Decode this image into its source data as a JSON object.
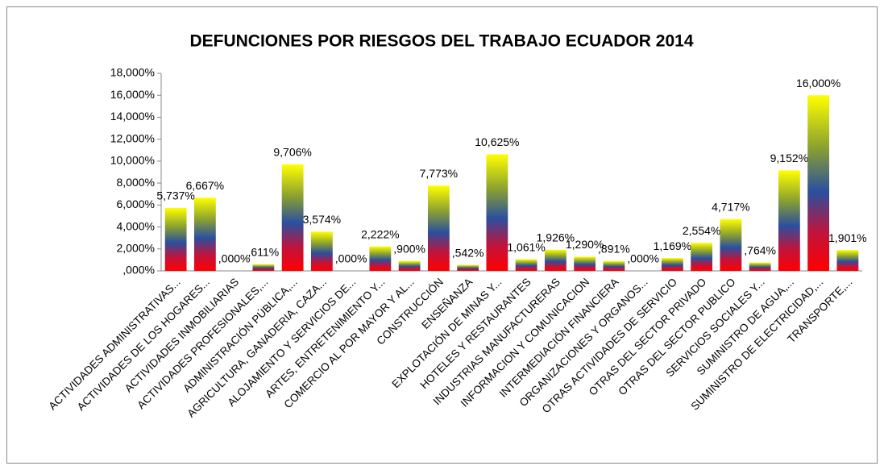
{
  "chart_data": {
    "type": "bar",
    "title": "DEFUNCIONES POR RIESGOS DEL TRABAJO ECUADOR 2014",
    "categories": [
      "ACTIVIDADES ADMINISTRATIVAS...",
      "ACTIVIDADES DE LOS HOGARES...",
      "ACTIVIDADES INMOBILIARIAS",
      "ACTIVIDADES PROFESIONALES,...",
      "ADMINISTRACIÓN PÚBLICA,...",
      "AGRICULTURA, GANADERIA, CAZA...",
      "ALOJAMIENTO Y SERVICIOS DE...",
      "ARTES, ENTRETENIMIENTO Y...",
      "COMERCIO AL POR MAYOR Y AL...",
      "CONSTRUCCIÓN",
      "ENSEÑANZA",
      "EXPLOTACIÓN DE MINAS Y...",
      "HOTELES Y RESTAURANTES",
      "INDUSTRIAS MANUFACTURERAS",
      "INFORMACION Y COMUNICACION",
      "INTERMEDIACIÓN FINANCIERA",
      "ORGANIZACIONES Y ORGANOS...",
      "OTRAS ACTIVIDADES DE SERVICIO",
      "OTRAS DEL SECTOR PRIVADO",
      "OTRAS DEL SECTOR PUBLICO",
      "SERVICIOS SOCIALES Y...",
      "SUMINISTRO DE AGUA,...",
      "SUMINISTRO DE ELECTRICIDAD,...",
      "TRANSPORTE,..."
    ],
    "values": [
      5.737,
      6.667,
      0,
      0.611,
      9.706,
      3.574,
      0,
      2.222,
      0.9,
      7.773,
      0.542,
      10.625,
      1.061,
      1.926,
      1.29,
      0.891,
      0,
      1.169,
      2.554,
      4.717,
      0.764,
      9.152,
      16,
      1.901
    ],
    "value_labels": [
      "5,737%",
      "6,667%",
      ",000%",
      ",611%",
      "9,706%",
      "3,574%",
      ",000%",
      "2,222%",
      ",900%",
      "7,773%",
      ",542%",
      "10,625%",
      "1,061%",
      "1,926%",
      "1,290%",
      ",891%",
      ",000%",
      "1,169%",
      "2,554%",
      "4,717%",
      ",764%",
      "9,152%",
      "16,000%",
      "1,901%"
    ],
    "ylim": [
      0,
      18
    ],
    "yticks": [
      {
        "value": 0,
        "label": ",000%"
      },
      {
        "value": 2,
        "label": "2,000%"
      },
      {
        "value": 4,
        "label": "4,000%"
      },
      {
        "value": 6,
        "label": "6,000%"
      },
      {
        "value": 8,
        "label": "8,000%"
      },
      {
        "value": 10,
        "label": "10,000%"
      },
      {
        "value": 12,
        "label": "12,000%"
      },
      {
        "value": 14,
        "label": "14,000%"
      },
      {
        "value": 16,
        "label": "16,000%"
      },
      {
        "value": 18,
        "label": "18,000%"
      }
    ],
    "grid": false
  }
}
